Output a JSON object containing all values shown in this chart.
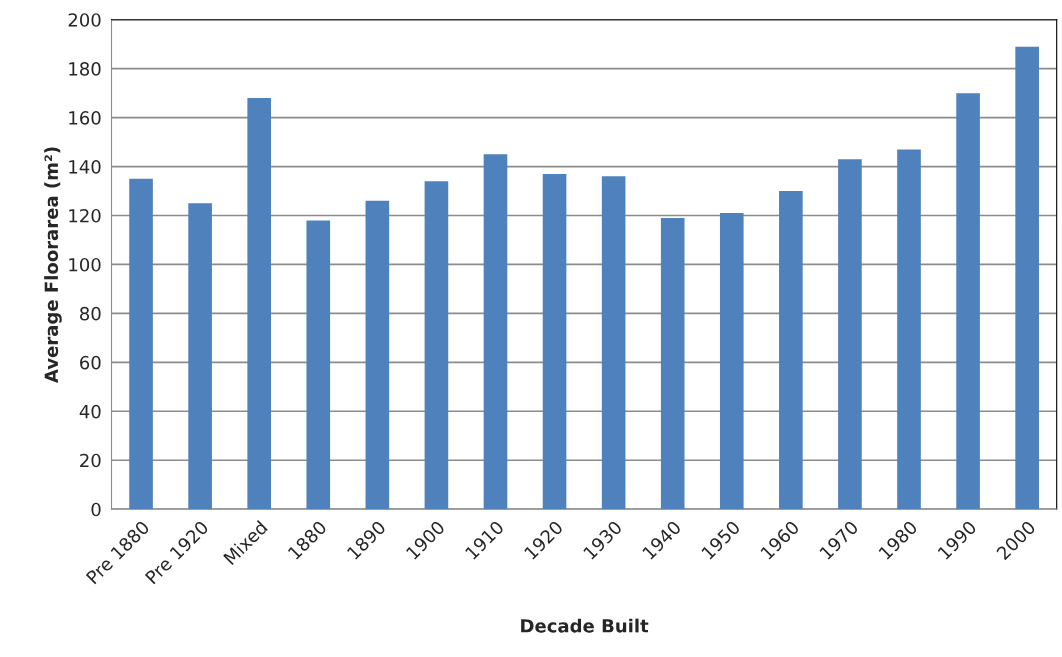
{
  "chart_data": {
    "type": "bar",
    "xlabel": "Decade Built",
    "ylabel": "Average Floorarea (m²)",
    "categories": [
      "Pre 1880",
      "Pre 1920",
      "Mixed",
      "1880",
      "1890",
      "1900",
      "1910",
      "1920",
      "1930",
      "1940",
      "1950",
      "1960",
      "1970",
      "1980",
      "1990",
      "2000"
    ],
    "values": [
      135,
      125,
      168,
      118,
      126,
      134,
      145,
      137,
      136,
      119,
      121,
      130,
      143,
      147,
      170,
      189
    ],
    "color": "#4f81bd",
    "ylim": [
      0,
      200
    ],
    "yticks": [
      0,
      20,
      40,
      60,
      80,
      100,
      120,
      140,
      160,
      180,
      200
    ],
    "grid": "y",
    "legend": false
  }
}
